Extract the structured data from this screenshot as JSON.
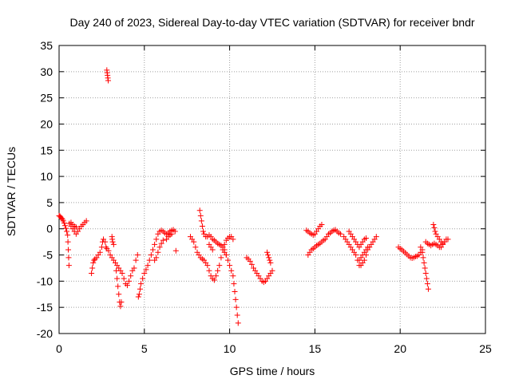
{
  "chart_data": {
    "type": "scatter",
    "title": "Day 240 of 2023, Sidereal Day-to-day VTEC variation (SDTVAR) for receiver bndr",
    "xlabel": "GPS time / hours",
    "ylabel": "SDTVAR / TECUs",
    "xlim": [
      0,
      25
    ],
    "ylim": [
      -20,
      35
    ],
    "xticks": [
      0,
      5,
      10,
      15,
      20,
      25
    ],
    "yticks": [
      -20,
      -15,
      -10,
      -5,
      0,
      5,
      10,
      15,
      20,
      25,
      30,
      35
    ],
    "grid": true,
    "marker": "+",
    "colors": {
      "series": "#ff0000",
      "grid": "#a0a0a0",
      "axis": "#000000"
    },
    "series": [
      {
        "name": "SDTVAR",
        "points": [
          [
            0.0,
            2.5
          ],
          [
            0.05,
            2.4
          ],
          [
            0.1,
            2.2
          ],
          [
            0.15,
            2.0
          ],
          [
            0.2,
            1.8
          ],
          [
            0.25,
            1.5
          ],
          [
            0.3,
            1.1
          ],
          [
            0.35,
            0.6
          ],
          [
            0.4,
            0.1
          ],
          [
            0.45,
            -0.5
          ],
          [
            0.5,
            -1.2
          ],
          [
            0.52,
            -2.5
          ],
          [
            0.54,
            -4.0
          ],
          [
            0.56,
            -5.5
          ],
          [
            0.58,
            -7.0
          ],
          [
            0.6,
            1.0
          ],
          [
            0.7,
            0.5
          ],
          [
            0.8,
            0.0
          ],
          [
            0.9,
            -0.5
          ],
          [
            1.0,
            -1.0
          ],
          [
            1.1,
            -0.5
          ],
          [
            1.2,
            0.0
          ],
          [
            1.3,
            0.5
          ],
          [
            1.4,
            0.8
          ],
          [
            1.5,
            1.2
          ],
          [
            1.6,
            1.5
          ],
          [
            0.7,
            1.2
          ],
          [
            0.8,
            0.8
          ],
          [
            0.9,
            0.5
          ],
          [
            1.0,
            0.3
          ],
          [
            1.9,
            -8.5
          ],
          [
            1.95,
            -7.5
          ],
          [
            2.0,
            -6.5
          ],
          [
            2.05,
            -6.0
          ],
          [
            2.1,
            -5.8
          ],
          [
            2.2,
            -5.5
          ],
          [
            2.3,
            -5.0
          ],
          [
            2.4,
            -4.5
          ],
          [
            2.5,
            -3.5
          ],
          [
            2.55,
            -2.5
          ],
          [
            2.6,
            -2.0
          ],
          [
            2.7,
            -2.5
          ],
          [
            2.75,
            -3.5
          ],
          [
            2.8,
            -3.8
          ],
          [
            2.9,
            -4.2
          ],
          [
            3.0,
            -5.0
          ],
          [
            3.1,
            -5.5
          ],
          [
            3.2,
            -6.0
          ],
          [
            3.3,
            -6.5
          ],
          [
            3.4,
            -7.0
          ],
          [
            3.5,
            -7.5
          ],
          [
            3.6,
            -8.0
          ],
          [
            3.7,
            -8.5
          ],
          [
            3.8,
            -9.5
          ],
          [
            3.9,
            -10.5
          ],
          [
            4.0,
            -10.8
          ],
          [
            4.1,
            -10.0
          ],
          [
            4.2,
            -9.0
          ],
          [
            4.3,
            -8.0
          ],
          [
            4.4,
            -7.5
          ],
          [
            4.5,
            -6.0
          ],
          [
            4.6,
            -5.0
          ],
          [
            3.1,
            -1.5
          ],
          [
            3.12,
            -2.0
          ],
          [
            3.14,
            -2.5
          ],
          [
            3.2,
            -3.0
          ],
          [
            3.35,
            -8.0
          ],
          [
            3.4,
            -9.5
          ],
          [
            3.45,
            -11.0
          ],
          [
            3.5,
            -12.5
          ],
          [
            3.55,
            -14.0
          ],
          [
            3.6,
            -14.8
          ],
          [
            3.65,
            -14.0
          ],
          [
            2.8,
            30.3
          ],
          [
            2.82,
            29.8
          ],
          [
            2.84,
            29.3
          ],
          [
            2.86,
            28.8
          ],
          [
            2.88,
            28.3
          ],
          [
            4.65,
            -13.0
          ],
          [
            4.7,
            -12.5
          ],
          [
            4.75,
            -11.5
          ],
          [
            4.8,
            -10.5
          ],
          [
            4.9,
            -9.5
          ],
          [
            5.0,
            -8.5
          ],
          [
            5.1,
            -7.8
          ],
          [
            5.2,
            -7.0
          ],
          [
            5.3,
            -6.0
          ],
          [
            5.4,
            -5.0
          ],
          [
            5.5,
            -4.0
          ],
          [
            5.6,
            -3.0
          ],
          [
            5.7,
            -2.0
          ],
          [
            5.8,
            -1.0
          ],
          [
            5.9,
            -0.5
          ],
          [
            6.0,
            -0.3
          ],
          [
            6.1,
            -0.5
          ],
          [
            6.2,
            -0.8
          ],
          [
            6.3,
            -1.0
          ],
          [
            6.4,
            -0.8
          ],
          [
            6.5,
            -0.5
          ],
          [
            6.6,
            -0.3
          ],
          [
            6.7,
            -0.2
          ],
          [
            6.8,
            -0.5
          ],
          [
            5.6,
            -6.0
          ],
          [
            5.7,
            -5.5
          ],
          [
            5.8,
            -4.5
          ],
          [
            5.9,
            -3.5
          ],
          [
            6.0,
            -2.8
          ],
          [
            6.1,
            -2.2
          ],
          [
            6.3,
            -2.0
          ],
          [
            6.4,
            -1.5
          ],
          [
            6.5,
            -1.2
          ],
          [
            6.6,
            -1.0
          ],
          [
            6.85,
            -4.2
          ],
          [
            7.7,
            -1.5
          ],
          [
            7.8,
            -2.0
          ],
          [
            7.9,
            -2.5
          ],
          [
            8.0,
            -3.5
          ],
          [
            8.1,
            -4.5
          ],
          [
            8.2,
            -5.0
          ],
          [
            8.3,
            -5.5
          ],
          [
            8.4,
            -5.8
          ],
          [
            8.5,
            -6.0
          ],
          [
            8.6,
            -6.5
          ],
          [
            8.7,
            -7.0
          ],
          [
            8.8,
            -8.0
          ],
          [
            8.9,
            -9.0
          ],
          [
            9.0,
            -9.5
          ],
          [
            9.1,
            -9.8
          ],
          [
            9.2,
            -9.0
          ],
          [
            9.3,
            -8.0
          ],
          [
            9.4,
            -7.0
          ],
          [
            9.5,
            -5.5
          ],
          [
            9.6,
            -4.0
          ],
          [
            9.7,
            -3.0
          ],
          [
            9.8,
            -2.2
          ],
          [
            9.9,
            -1.8
          ],
          [
            10.0,
            -1.5
          ],
          [
            10.1,
            -1.5
          ],
          [
            10.2,
            -2.0
          ],
          [
            8.25,
            3.5
          ],
          [
            8.3,
            2.5
          ],
          [
            8.35,
            1.5
          ],
          [
            8.4,
            0.5
          ],
          [
            8.45,
            -0.5
          ],
          [
            8.5,
            -1.0
          ],
          [
            8.6,
            -1.5
          ],
          [
            8.7,
            -1.5
          ],
          [
            8.8,
            -1.2
          ],
          [
            8.9,
            -1.5
          ],
          [
            9.0,
            -2.0
          ],
          [
            9.1,
            -2.2
          ],
          [
            9.2,
            -2.5
          ],
          [
            9.3,
            -2.8
          ],
          [
            9.4,
            -3.0
          ],
          [
            9.5,
            -3.2
          ],
          [
            9.6,
            -3.5
          ],
          [
            9.7,
            -4.0
          ],
          [
            9.8,
            -5.0
          ],
          [
            9.9,
            -6.0
          ],
          [
            10.0,
            -7.0
          ],
          [
            10.1,
            -8.0
          ],
          [
            10.2,
            -9.0
          ],
          [
            10.25,
            -10.5
          ],
          [
            10.3,
            -12.0
          ],
          [
            10.35,
            -13.5
          ],
          [
            10.4,
            -15.0
          ],
          [
            10.45,
            -16.5
          ],
          [
            10.5,
            -18.0
          ],
          [
            8.8,
            -3.0
          ],
          [
            8.9,
            -3.5
          ],
          [
            9.0,
            -4.0
          ],
          [
            9.6,
            -4.0
          ],
          [
            9.7,
            -4.5
          ],
          [
            9.8,
            -5.0
          ],
          [
            11.0,
            -5.5
          ],
          [
            11.1,
            -5.8
          ],
          [
            11.2,
            -6.2
          ],
          [
            11.3,
            -6.8
          ],
          [
            11.4,
            -7.5
          ],
          [
            11.5,
            -8.0
          ],
          [
            11.6,
            -8.5
          ],
          [
            11.7,
            -9.0
          ],
          [
            11.8,
            -9.5
          ],
          [
            11.9,
            -10.0
          ],
          [
            12.0,
            -10.2
          ],
          [
            12.1,
            -10.0
          ],
          [
            12.2,
            -9.5
          ],
          [
            12.3,
            -9.0
          ],
          [
            12.4,
            -8.5
          ],
          [
            12.5,
            -8.0
          ],
          [
            12.2,
            -4.5
          ],
          [
            12.25,
            -5.0
          ],
          [
            12.3,
            -5.5
          ],
          [
            12.35,
            -6.0
          ],
          [
            12.4,
            -6.5
          ],
          [
            14.5,
            -0.3
          ],
          [
            14.6,
            -0.5
          ],
          [
            14.7,
            -0.8
          ],
          [
            14.8,
            -1.0
          ],
          [
            14.9,
            -1.2
          ],
          [
            15.0,
            -1.0
          ],
          [
            15.1,
            -0.5
          ],
          [
            15.2,
            0.0
          ],
          [
            15.3,
            0.5
          ],
          [
            15.4,
            0.8
          ],
          [
            14.6,
            -5.0
          ],
          [
            14.7,
            -4.5
          ],
          [
            14.8,
            -4.0
          ],
          [
            14.9,
            -3.8
          ],
          [
            15.0,
            -3.5
          ],
          [
            15.1,
            -3.2
          ],
          [
            15.2,
            -3.0
          ],
          [
            15.3,
            -2.8
          ],
          [
            15.4,
            -2.5
          ],
          [
            15.5,
            -2.2
          ],
          [
            15.6,
            -2.0
          ],
          [
            15.7,
            -1.5
          ],
          [
            15.8,
            -1.0
          ],
          [
            15.9,
            -0.8
          ],
          [
            16.0,
            -0.5
          ],
          [
            16.1,
            -0.3
          ],
          [
            16.2,
            -0.2
          ],
          [
            16.3,
            -0.5
          ],
          [
            16.4,
            -0.8
          ],
          [
            16.5,
            -1.0
          ],
          [
            16.7,
            -1.5
          ],
          [
            16.8,
            -2.0
          ],
          [
            16.9,
            -2.5
          ],
          [
            17.0,
            -3.0
          ],
          [
            17.1,
            -3.5
          ],
          [
            17.2,
            -4.0
          ],
          [
            17.3,
            -4.5
          ],
          [
            17.4,
            -5.0
          ],
          [
            17.5,
            -6.0
          ],
          [
            17.6,
            -7.0
          ],
          [
            17.7,
            -7.0
          ],
          [
            17.8,
            -6.5
          ],
          [
            17.9,
            -6.0
          ],
          [
            18.0,
            -5.0
          ],
          [
            18.1,
            -4.0
          ],
          [
            18.2,
            -3.5
          ],
          [
            18.3,
            -3.0
          ],
          [
            18.4,
            -2.5
          ],
          [
            18.5,
            -2.0
          ],
          [
            18.6,
            -1.5
          ],
          [
            17.0,
            -0.5
          ],
          [
            17.1,
            -1.0
          ],
          [
            17.2,
            -1.5
          ],
          [
            17.3,
            -2.0
          ],
          [
            17.4,
            -2.5
          ],
          [
            17.5,
            -3.0
          ],
          [
            17.6,
            -3.5
          ],
          [
            17.7,
            -3.0
          ],
          [
            17.8,
            -2.5
          ],
          [
            17.9,
            -2.0
          ],
          [
            18.0,
            -1.8
          ],
          [
            17.6,
            -6.0
          ],
          [
            17.7,
            -5.5
          ],
          [
            17.8,
            -5.0
          ],
          [
            17.9,
            -4.5
          ],
          [
            18.0,
            -4.0
          ],
          [
            18.1,
            -3.5
          ],
          [
            19.9,
            -3.5
          ],
          [
            20.0,
            -3.8
          ],
          [
            20.1,
            -4.0
          ],
          [
            20.2,
            -4.3
          ],
          [
            20.3,
            -4.6
          ],
          [
            20.4,
            -4.9
          ],
          [
            20.5,
            -5.2
          ],
          [
            20.6,
            -5.5
          ],
          [
            20.7,
            -5.6
          ],
          [
            20.8,
            -5.5
          ],
          [
            20.9,
            -5.3
          ],
          [
            21.0,
            -5.2
          ],
          [
            21.1,
            -5.0
          ],
          [
            21.2,
            -4.5
          ],
          [
            21.3,
            -4.0
          ],
          [
            21.2,
            -3.5
          ],
          [
            21.3,
            -4.5
          ],
          [
            21.35,
            -5.5
          ],
          [
            21.4,
            -6.5
          ],
          [
            21.45,
            -7.5
          ],
          [
            21.5,
            -8.5
          ],
          [
            21.55,
            -9.5
          ],
          [
            21.6,
            -10.5
          ],
          [
            21.65,
            -11.5
          ],
          [
            21.5,
            -2.5
          ],
          [
            21.6,
            -2.8
          ],
          [
            21.7,
            -3.0
          ],
          [
            21.8,
            -3.2
          ],
          [
            21.9,
            -3.0
          ],
          [
            22.0,
            -2.8
          ],
          [
            22.1,
            -3.0
          ],
          [
            22.2,
            -3.2
          ],
          [
            22.3,
            -3.5
          ],
          [
            22.4,
            -3.5
          ],
          [
            22.5,
            -3.0
          ],
          [
            22.6,
            -2.5
          ],
          [
            22.7,
            -2.0
          ],
          [
            22.8,
            -2.0
          ],
          [
            21.95,
            0.8
          ],
          [
            22.0,
            0.2
          ],
          [
            22.05,
            -0.5
          ],
          [
            22.1,
            -1.0
          ],
          [
            22.2,
            -1.5
          ],
          [
            22.3,
            -2.0
          ],
          [
            22.4,
            -2.5
          ],
          [
            22.5,
            -2.8
          ]
        ]
      }
    ]
  }
}
